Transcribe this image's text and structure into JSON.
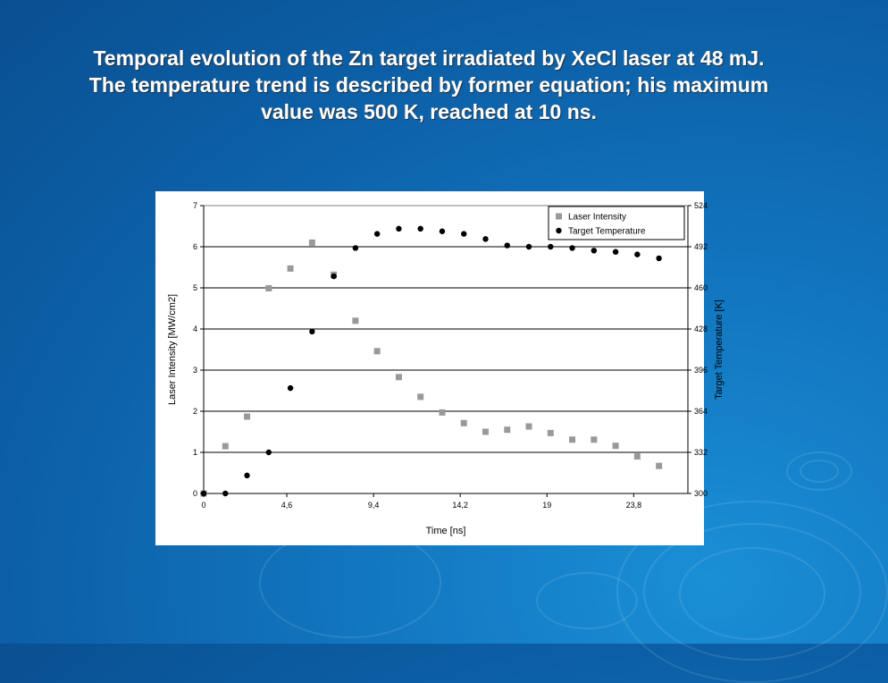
{
  "slide": {
    "title_lines": [
      "Temporal evolution of the Zn target irradiated by XeCl laser at 48 mJ.",
      "The temperature trend is described by former equation; his maximum",
      "value was 500 K, reached at 10 ns."
    ]
  },
  "chart_data": {
    "type": "scatter",
    "xlabel": "Time [ns]",
    "ylabel": "Laser Intensity [MW/cm2]",
    "y2label": "Target Temperature [K]",
    "xlim": [
      0,
      26.8
    ],
    "ylim": [
      0,
      7
    ],
    "y2lim": [
      300,
      524
    ],
    "x_ticks": [
      "0",
      "4,6",
      "9,4",
      "14,2",
      "19",
      "23,8"
    ],
    "x_tick_values": [
      0,
      4.6,
      9.4,
      14.2,
      19,
      23.8
    ],
    "y_ticks": [
      "0",
      "1",
      "2",
      "3",
      "4",
      "5",
      "6",
      "7"
    ],
    "y2_ticks": [
      "300",
      "332",
      "364",
      "396",
      "428",
      "460",
      "492",
      "524"
    ],
    "grid": "horizontal",
    "legend_position": "top-right",
    "series": [
      {
        "name": "Laser Intensity",
        "axis": "left",
        "marker": "square",
        "color": "#999999",
        "x": [
          0,
          1.2,
          2.4,
          3.6,
          4.8,
          6.0,
          7.2,
          8.4,
          9.6,
          10.8,
          12.0,
          13.2,
          14.4,
          15.6,
          16.8,
          18.0,
          19.2,
          20.4,
          21.6,
          22.8,
          24.0,
          25.2
        ],
        "y": [
          0,
          1.15,
          1.87,
          4.99,
          5.47,
          6.1,
          5.32,
          4.2,
          3.46,
          2.83,
          2.35,
          1.97,
          1.71,
          1.5,
          1.55,
          1.63,
          1.47,
          1.31,
          1.31,
          1.16,
          0.9,
          0.67
        ]
      },
      {
        "name": "Target Temperature",
        "axis": "right",
        "marker": "circle",
        "color": "#000000",
        "x": [
          0,
          1.2,
          2.4,
          3.6,
          4.8,
          6.0,
          7.2,
          8.4,
          9.6,
          10.8,
          12.0,
          13.2,
          14.4,
          15.6,
          16.8,
          18.0,
          19.2,
          20.4,
          21.6,
          22.8,
          24.0,
          25.2
        ],
        "y": [
          300,
          300,
          314,
          332,
          382,
          426,
          469,
          491,
          502,
          506,
          506,
          504,
          502,
          498,
          493,
          492,
          492,
          491,
          489,
          488,
          486,
          483
        ]
      }
    ]
  }
}
